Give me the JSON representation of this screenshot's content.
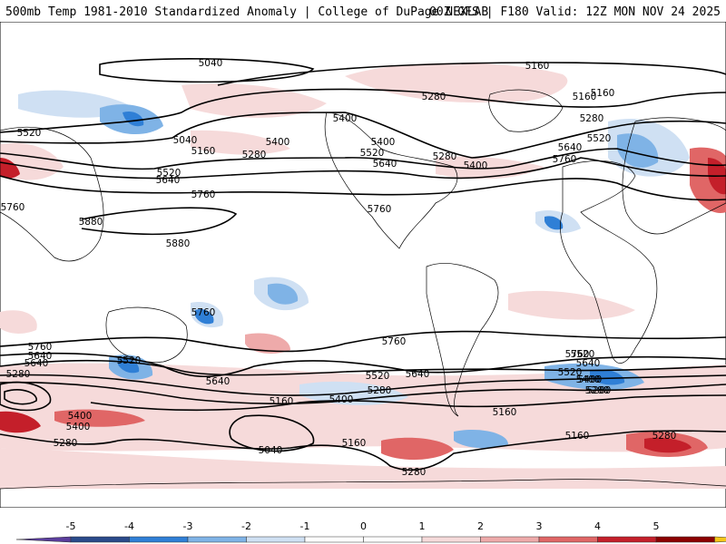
{
  "header": {
    "left": "500mb Temp 1981-2010 Standardized Anomaly | College of DuPage NEXLAB",
    "right": "00Z GFS | F180 Valid: 12Z MON NOV 24 2025"
  },
  "colors": {
    "neg5": "#5a3d9c",
    "neg4": "#2a4a8a",
    "neg3": "#2f7fd6",
    "neg2": "#7fb3e6",
    "neg1": "#cfe0f3",
    "zero": "#ffffff",
    "pos1": "#f6dada",
    "pos2": "#eeaaaa",
    "pos3": "#e06666",
    "pos4": "#c41f2a",
    "pos5": "#8b0000",
    "pos6": "#f5c518"
  },
  "colorbar": {
    "ticks": [
      "-5",
      "-4",
      "-3",
      "-2",
      "-1",
      "0",
      "1",
      "2",
      "3",
      "4",
      "5"
    ]
  },
  "contour_labels": [
    "5040",
    "5160",
    "5160",
    "5280",
    "5280",
    "5400",
    "5040",
    "5160",
    "5280",
    "5400",
    "5400",
    "5520",
    "5640",
    "5520",
    "5280",
    "5400",
    "5160",
    "5640",
    "5520",
    "5760",
    "5760",
    "5640",
    "5520",
    "5760",
    "5880",
    "5880",
    "5760",
    "5760",
    "5640",
    "5520",
    "5640",
    "5760",
    "5400",
    "5280",
    "5520",
    "5640",
    "5280",
    "5400",
    "5160",
    "5040",
    "5400",
    "5280",
    "5160",
    "5160",
    "5280",
    "5760",
    "5640",
    "5520",
    "5400",
    "5280",
    "5160",
    "5280",
    "5400",
    "5520",
    "5640",
    "5760",
    "5280"
  ]
}
